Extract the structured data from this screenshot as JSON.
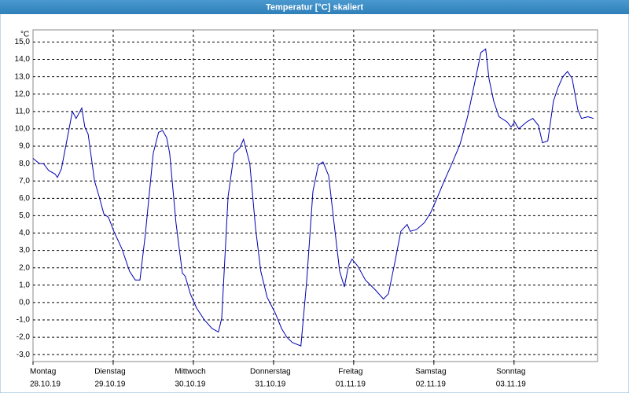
{
  "chart_data": {
    "type": "line",
    "title": "Temperatur [°C] skaliert",
    "y_unit": "°C",
    "xlim": [
      0,
      169
    ],
    "ylim": [
      -3.4,
      15.7
    ],
    "grid": true,
    "xticks": [
      {
        "value": 0,
        "label": "Montag"
      },
      {
        "value": 24,
        "label": "Dienstag"
      },
      {
        "value": 48,
        "label": "Mittwoch"
      },
      {
        "value": 72,
        "label": "Donnerstag"
      },
      {
        "value": 96,
        "label": "Freitag"
      },
      {
        "value": 120,
        "label": "Samstag"
      },
      {
        "value": 144,
        "label": "Sonntag"
      }
    ],
    "xtick_dates": [
      "28.10.19",
      "29.10.19",
      "30.10.19",
      "31.10.19",
      "01.11.19",
      "02.11.19",
      "03.11.19"
    ],
    "yticks": [
      {
        "value": -3,
        "label": "-3,0"
      },
      {
        "value": -2,
        "label": "-2,0"
      },
      {
        "value": -1,
        "label": "-1,0"
      },
      {
        "value": 0,
        "label": "0,0"
      },
      {
        "value": 1,
        "label": "1,0"
      },
      {
        "value": 2,
        "label": "2,0"
      },
      {
        "value": 3,
        "label": "3,0"
      },
      {
        "value": 4,
        "label": "4,0"
      },
      {
        "value": 5,
        "label": "5,0"
      },
      {
        "value": 6,
        "label": "6,0"
      },
      {
        "value": 7,
        "label": "7,0"
      },
      {
        "value": 8,
        "label": "8,0"
      },
      {
        "value": 9,
        "label": "9,0"
      },
      {
        "value": 10,
        "label": "10,0"
      },
      {
        "value": 11,
        "label": "11,0"
      },
      {
        "value": 12,
        "label": "12,0"
      },
      {
        "value": 13,
        "label": "13,0"
      },
      {
        "value": 14,
        "label": "14,0"
      },
      {
        "value": 15,
        "label": "15,0"
      }
    ],
    "series": [
      {
        "name": "Temperatur",
        "color": "#0000b0",
        "x": [
          0,
          1.9,
          3.1,
          4.7,
          6.6,
          7.3,
          8.5,
          10.1,
          11.8,
          12.9,
          14.6,
          15.5,
          16.5,
          18.4,
          19.8,
          21.2,
          22.6,
          24.2,
          26.6,
          28.9,
          30.6,
          32,
          33.6,
          36,
          37.6,
          38.8,
          40,
          40.9,
          42.8,
          44.7,
          45.6,
          47.1,
          48.9,
          51.3,
          53.6,
          55.5,
          56.5,
          58.4,
          60.2,
          61.9,
          63,
          64.9,
          66.6,
          68.2,
          70.1,
          72.5,
          74.4,
          76,
          77.6,
          80.2,
          81.9,
          83.8,
          85.4,
          86.8,
          88.5,
          90.1,
          91.8,
          93.2,
          94.4,
          95.5,
          97.2,
          99.5,
          102.6,
          104.9,
          106.4,
          108.2,
          110.1,
          112,
          112.9,
          114.8,
          117.2,
          119.1,
          120.7,
          123.1,
          125.4,
          127.8,
          130.1,
          132.5,
          134.1,
          135.5,
          136.5,
          137.9,
          139.5,
          141.9,
          143.1,
          144.2,
          145.4,
          147.8,
          149.6,
          151.3,
          152.5,
          154.1,
          155.8,
          157.2,
          158.6,
          160,
          161.4,
          163.1,
          164.2,
          166.1,
          167.8
        ],
        "values": [
          8.3,
          8.0,
          8.0,
          7.6,
          7.4,
          7.2,
          7.7,
          9.3,
          11.0,
          10.6,
          11.2,
          10.1,
          9.7,
          7.0,
          6.1,
          5.1,
          4.9,
          4.1,
          3.1,
          1.8,
          1.3,
          1.3,
          3.9,
          8.6,
          9.8,
          9.9,
          9.5,
          8.6,
          4.6,
          1.7,
          1.5,
          0.5,
          -0.3,
          -1.0,
          -1.5,
          -1.7,
          -0.9,
          6.1,
          8.6,
          8.9,
          9.4,
          8.0,
          4.3,
          1.8,
          0.3,
          -0.6,
          -1.5,
          -2.0,
          -2.3,
          -2.5,
          1.2,
          6.4,
          7.9,
          8.1,
          7.3,
          4.6,
          1.8,
          0.9,
          2.1,
          2.5,
          2.1,
          1.3,
          0.7,
          0.2,
          0.5,
          2.2,
          4.1,
          4.5,
          4.1,
          4.2,
          4.6,
          5.2,
          5.9,
          7.0,
          8.0,
          9.1,
          10.7,
          12.9,
          14.4,
          14.6,
          12.9,
          11.6,
          10.7,
          10.4,
          10.1,
          10.4,
          10.0,
          10.4,
          10.6,
          10.2,
          9.2,
          9.3,
          11.6,
          12.4,
          13.0,
          13.3,
          12.9,
          11.1,
          10.6,
          10.7,
          10.6
        ]
      }
    ]
  }
}
